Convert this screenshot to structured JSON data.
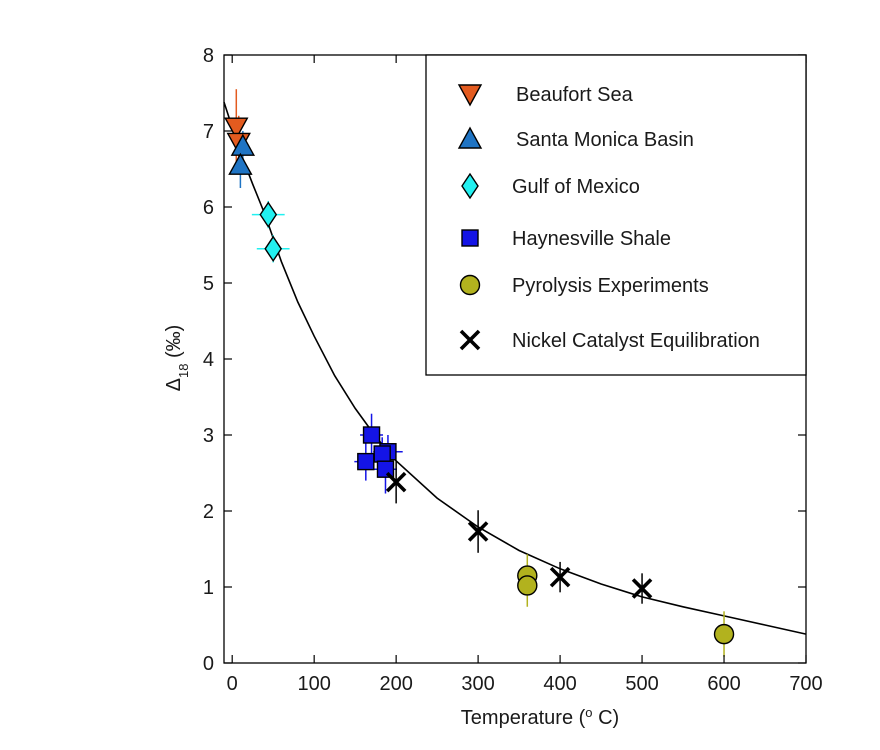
{
  "chart_data": {
    "type": "scatter",
    "xlabel": "Temperature (",
    "xlabel_sup": "o",
    "xlabel_tail": " C)",
    "ylabel_delta": "Δ",
    "ylabel_sub": "18",
    "ylabel_unit": " (‰)",
    "xlim": [
      -10,
      700
    ],
    "ylim": [
      0,
      8
    ],
    "xticks": [
      0,
      100,
      200,
      300,
      400,
      500,
      600,
      700
    ],
    "yticks": [
      0,
      1,
      2,
      3,
      4,
      5,
      6,
      7,
      8
    ],
    "grid": false,
    "legend_position": "top-right",
    "series": [
      {
        "name": "Beaufort Sea",
        "marker": "triangle-down",
        "color": "#E35B1F",
        "points": [
          {
            "x": 5,
            "y": 7.05,
            "yerr": 0.5
          },
          {
            "x": 8,
            "y": 6.85,
            "yerr": 0.35
          }
        ]
      },
      {
        "name": "Santa Monica Basin",
        "marker": "triangle-up",
        "color": "#1F74C4",
        "points": [
          {
            "x": 13,
            "y": 6.8,
            "yerr": 0.2
          },
          {
            "x": 10,
            "y": 6.55,
            "yerr": 0.3
          }
        ]
      },
      {
        "name": "Gulf of Mexico",
        "marker": "diamond",
        "color": "#22F0F0",
        "points": [
          {
            "x": 44,
            "y": 5.9,
            "yerr": 0.18,
            "xerr": 20
          },
          {
            "x": 50,
            "y": 5.45,
            "yerr": 0.18,
            "xerr": 20
          }
        ]
      },
      {
        "name": "Haynesville Shale",
        "marker": "square",
        "color": "#1414E6",
        "points": [
          {
            "x": 170,
            "y": 3.0,
            "yerr": 0.28,
            "xerr": 14
          },
          {
            "x": 190,
            "y": 2.78,
            "yerr": 0.22,
            "xerr": 18
          },
          {
            "x": 183,
            "y": 2.75,
            "yerr": 0.22,
            "xerr": 14
          },
          {
            "x": 163,
            "y": 2.65,
            "yerr": 0.25,
            "xerr": 14
          },
          {
            "x": 187,
            "y": 2.55,
            "yerr": 0.32,
            "xerr": 14
          }
        ]
      },
      {
        "name": "Pyrolysis Experiments",
        "marker": "circle",
        "color": "#B2B21E",
        "points": [
          {
            "x": 360,
            "y": 1.15,
            "yerr": 0.28
          },
          {
            "x": 360,
            "y": 1.02,
            "yerr": 0.28
          },
          {
            "x": 600,
            "y": 0.38,
            "yerr": 0.3
          }
        ]
      },
      {
        "name": "Nickel Catalyst Equilibration",
        "marker": "x",
        "color": "#000000",
        "points": [
          {
            "x": 200,
            "y": 2.38,
            "yerr": 0.28
          },
          {
            "x": 300,
            "y": 1.73,
            "yerr": 0.28
          },
          {
            "x": 400,
            "y": 1.13,
            "yerr": 0.2
          },
          {
            "x": 500,
            "y": 0.98,
            "yerr": 0.2
          }
        ]
      }
    ],
    "fit_curve": [
      {
        "x": -10,
        "y": 7.38
      },
      {
        "x": 0,
        "y": 7.05
      },
      {
        "x": 10,
        "y": 6.72
      },
      {
        "x": 25,
        "y": 6.3
      },
      {
        "x": 40,
        "y": 5.9
      },
      {
        "x": 60,
        "y": 5.28
      },
      {
        "x": 80,
        "y": 4.75
      },
      {
        "x": 100,
        "y": 4.3
      },
      {
        "x": 125,
        "y": 3.78
      },
      {
        "x": 150,
        "y": 3.35
      },
      {
        "x": 175,
        "y": 2.98
      },
      {
        "x": 200,
        "y": 2.66
      },
      {
        "x": 250,
        "y": 2.17
      },
      {
        "x": 300,
        "y": 1.79
      },
      {
        "x": 350,
        "y": 1.48
      },
      {
        "x": 400,
        "y": 1.24
      },
      {
        "x": 450,
        "y": 1.04
      },
      {
        "x": 500,
        "y": 0.87
      },
      {
        "x": 550,
        "y": 0.74
      },
      {
        "x": 600,
        "y": 0.62
      },
      {
        "x": 650,
        "y": 0.5
      },
      {
        "x": 700,
        "y": 0.38
      }
    ]
  }
}
